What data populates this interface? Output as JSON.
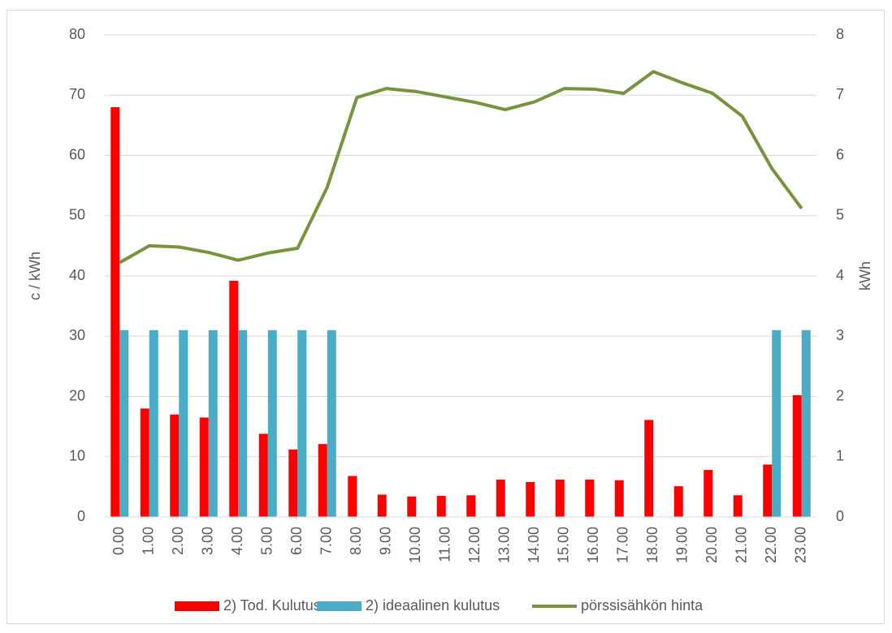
{
  "chart_data": {
    "type": "bar",
    "categories": [
      "0.00",
      "1.00",
      "2.00",
      "3.00",
      "4.00",
      "5.00",
      "6.00",
      "7.00",
      "8.00",
      "9.00",
      "10.00",
      "11.00",
      "12.00",
      "13.00",
      "14.00",
      "15.00",
      "16.00",
      "17.00",
      "18.00",
      "19.00",
      "20.00",
      "21.00",
      "22.00",
      "23.00"
    ],
    "series": [
      {
        "name": "2) Tod. Kulutus",
        "type": "bar",
        "axis": "y2",
        "color": "#ff0000",
        "values": [
          6.8,
          1.8,
          1.7,
          1.65,
          3.92,
          1.38,
          1.12,
          1.21,
          0.68,
          0.37,
          0.34,
          0.35,
          0.36,
          0.62,
          0.58,
          0.62,
          0.62,
          0.61,
          1.61,
          0.51,
          0.78,
          0.36,
          0.87,
          2.02
        ]
      },
      {
        "name": "2) ideaalinen kulutus",
        "type": "bar",
        "axis": "y2",
        "color": "#4bacc6",
        "values": [
          3.1,
          3.1,
          3.1,
          3.1,
          3.1,
          3.1,
          3.1,
          3.1,
          0,
          0,
          0,
          0,
          0,
          0,
          0,
          0,
          0,
          0,
          0,
          0,
          0,
          0,
          3.1,
          3.1
        ]
      },
      {
        "name": "pörssisähkön hinta",
        "type": "line",
        "color": "#77933c",
        "values": [
          42.2,
          45,
          44.8,
          43.9,
          42.6,
          43.8,
          44.6,
          54.7,
          69.6,
          71.1,
          70.6,
          69.7,
          68.8,
          67.6,
          68.9,
          71.1,
          71.0,
          70.3,
          73.9,
          72.0,
          70.3,
          66.5,
          57.8,
          51.2
        ]
      }
    ],
    "ylabel": "c / kWh",
    "y2label": "kWh",
    "ylim": [
      0,
      80
    ],
    "yticks": [
      0,
      10,
      20,
      30,
      40,
      50,
      60,
      70,
      80
    ],
    "y2lim": [
      0,
      8
    ],
    "y2ticks": [
      0,
      1,
      2,
      3,
      4,
      5,
      6,
      7,
      8
    ],
    "grid": true,
    "legend": "bottom"
  }
}
